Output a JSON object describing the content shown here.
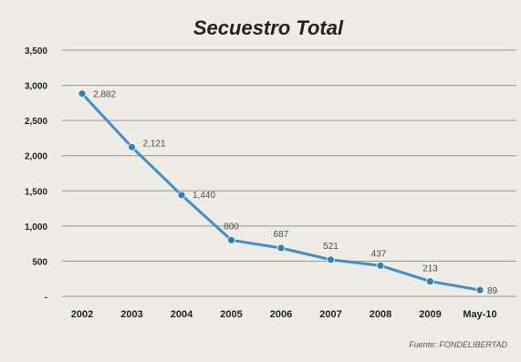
{
  "chart_data": {
    "type": "line",
    "title": "Secuestro Total",
    "source": "Fuente: FONDELIBERTAD",
    "categories": [
      "2002",
      "2003",
      "2004",
      "2005",
      "2006",
      "2007",
      "2008",
      "2009",
      "May-10"
    ],
    "data_labels": [
      "2,882",
      "2,121",
      "1,440",
      "800",
      "687",
      "521",
      "437",
      "213",
      "89"
    ],
    "values": [
      2882,
      2121,
      1440,
      800,
      687,
      521,
      437,
      213,
      89
    ],
    "ylim": [
      0,
      3500
    ],
    "y_ticks": [
      0,
      500,
      1000,
      1500,
      2000,
      2500,
      3000,
      3500
    ],
    "y_tick_labels": [
      "-",
      "500",
      "1,000",
      "1,500",
      "2,000",
      "2,500",
      "3,000",
      "3,500"
    ],
    "grid": true,
    "colors": {
      "line": "#3f8fcf",
      "marker": "#2f7fbf",
      "grid": "#9a958d",
      "background": "#efece6"
    }
  }
}
